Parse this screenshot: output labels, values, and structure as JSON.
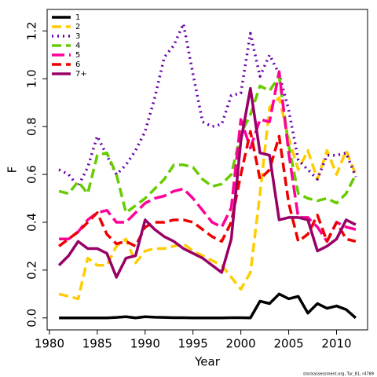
{
  "chart_data": {
    "type": "line",
    "xlabel": "Year",
    "ylabel": "F",
    "footnote": "stockassessment.org, Tur_81, r4789",
    "x": [
      1981,
      1982,
      1983,
      1984,
      1985,
      1986,
      1987,
      1988,
      1989,
      1990,
      1991,
      1992,
      1993,
      1994,
      1995,
      1996,
      1997,
      1998,
      1999,
      2000,
      2001,
      2002,
      2003,
      2004,
      2005,
      2006,
      2007,
      2008,
      2009,
      2010,
      2011,
      2012
    ],
    "xlim": [
      1979.76,
      2013.24
    ],
    "xticks": [
      1980,
      1985,
      1990,
      1995,
      2000,
      2005,
      2010
    ],
    "ylim": [
      -0.05,
      1.29
    ],
    "yticks": [
      {
        "value": 0,
        "label": "0.0"
      },
      0.2,
      0.4,
      0.6,
      0.8,
      {
        "value": 1,
        "label": "1.0"
      },
      1.2
    ],
    "legend": "top-left",
    "series": [
      {
        "name": "1",
        "color": "#000000",
        "linestyle": "solid",
        "values": [
          0,
          0,
          0,
          0,
          0,
          0,
          0.002,
          0.005,
          0,
          0.005,
          0.003,
          0.002,
          0.001,
          0.001,
          0,
          0,
          0,
          0,
          0.001,
          0.001,
          0,
          0.07,
          0.06,
          0.1,
          0.08,
          0.09,
          0.02,
          0.06,
          0.04,
          0.05,
          0.035,
          0
        ]
      },
      {
        "name": "2",
        "color": "#FFCC00",
        "linestyle": "dashed",
        "values": [
          0.1,
          0.09,
          0.08,
          0.25,
          0.22,
          0.22,
          0.3,
          0.33,
          0.23,
          0.28,
          0.29,
          0.29,
          0.3,
          0.31,
          0.28,
          0.26,
          0.24,
          0.22,
          0.17,
          0.12,
          0.19,
          0.52,
          0.88,
          0.92,
          0.75,
          0.62,
          0.7,
          0.58,
          0.7,
          0.6,
          0.7,
          0.6
        ]
      },
      {
        "name": "3",
        "color": "#6600AA",
        "linestyle": "dotted",
        "values": [
          0.62,
          0.6,
          0.55,
          0.63,
          0.76,
          0.68,
          0.6,
          0.64,
          0.7,
          0.78,
          0.92,
          1.09,
          1.14,
          1.23,
          1.02,
          0.82,
          0.8,
          0.81,
          0.93,
          0.94,
          1.19,
          1.01,
          1.1,
          1.02,
          0.87,
          0.66,
          0.62,
          0.58,
          0.68,
          0.68,
          0.69,
          0.59
        ]
      },
      {
        "name": "4",
        "color": "#66CC00",
        "linestyle": "dashed",
        "values": [
          0.53,
          0.52,
          0.57,
          0.52,
          0.68,
          0.69,
          0.6,
          0.44,
          0.47,
          0.5,
          0.54,
          0.58,
          0.64,
          0.64,
          0.63,
          0.58,
          0.55,
          0.56,
          0.6,
          0.77,
          0.85,
          0.97,
          0.95,
          1.01,
          0.72,
          0.52,
          0.5,
          0.49,
          0.5,
          0.48,
          0.52,
          0.6
        ]
      },
      {
        "name": "5",
        "color": "#FF0099",
        "linestyle": "longdash",
        "values": [
          0.33,
          0.33,
          0.36,
          0.41,
          0.44,
          0.45,
          0.4,
          0.4,
          0.44,
          0.48,
          0.5,
          0.51,
          0.53,
          0.54,
          0.5,
          0.45,
          0.4,
          0.38,
          0.46,
          0.83,
          0.71,
          0.83,
          0.82,
          1.03,
          0.69,
          0.42,
          0.42,
          0.38,
          0.32,
          0.4,
          0.38,
          0.37
        ]
      },
      {
        "name": "6",
        "color": "#EE0000",
        "linestyle": "dashed",
        "values": [
          0.3,
          0.33,
          0.36,
          0.4,
          0.44,
          0.35,
          0.31,
          0.32,
          0.3,
          0.38,
          0.4,
          0.4,
          0.41,
          0.41,
          0.4,
          0.37,
          0.34,
          0.32,
          0.4,
          0.6,
          0.78,
          0.58,
          0.62,
          0.76,
          0.48,
          0.32,
          0.35,
          0.43,
          0.32,
          0.4,
          0.33,
          0.32
        ]
      },
      {
        "name": "7+",
        "color": "#990066",
        "linestyle": "solid",
        "values": [
          0.22,
          0.26,
          0.32,
          0.29,
          0.29,
          0.27,
          0.17,
          0.25,
          0.26,
          0.41,
          0.37,
          0.34,
          0.32,
          0.29,
          0.27,
          0.25,
          0.22,
          0.19,
          0.33,
          0.74,
          0.96,
          0.69,
          0.68,
          0.41,
          0.42,
          0.42,
          0.41,
          0.28,
          0.3,
          0.33,
          0.41,
          0.39
        ]
      }
    ]
  }
}
